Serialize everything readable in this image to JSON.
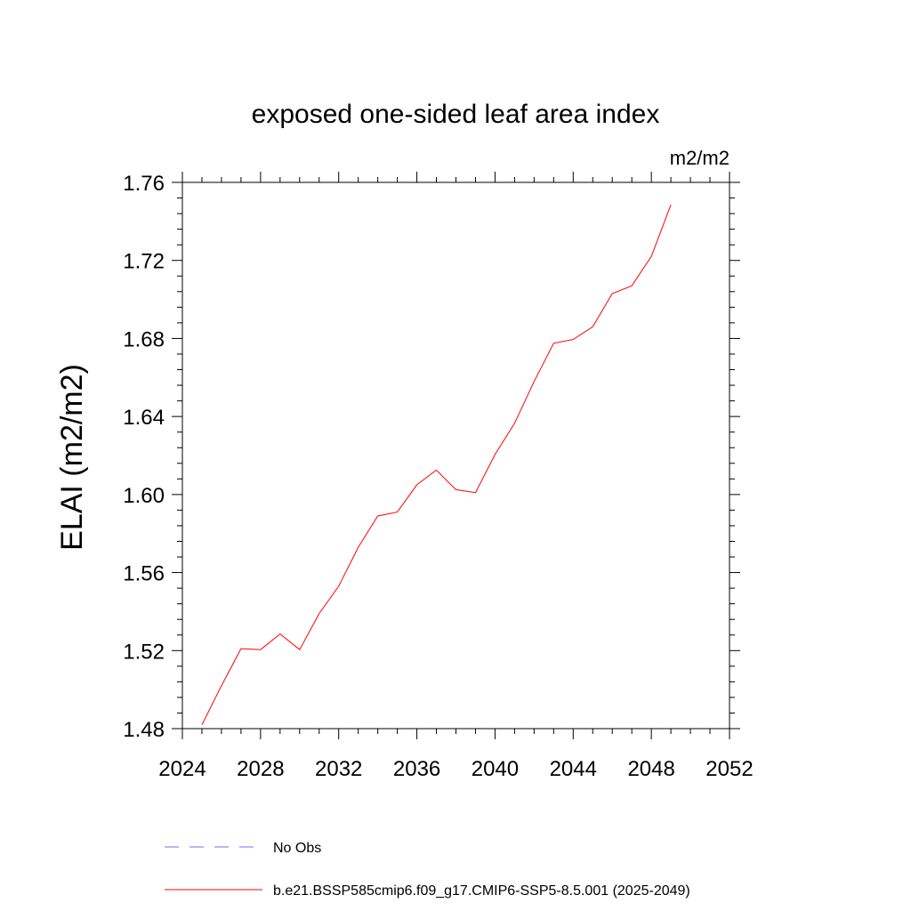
{
  "chart_data": {
    "type": "line",
    "title": "exposed one-sided leaf area index",
    "units_label": "m2/m2",
    "xlabel": "",
    "ylabel": "ELAI  (m2/m2)",
    "xlim": [
      2024,
      2052
    ],
    "ylim": [
      1.48,
      1.76
    ],
    "x_ticks": [
      2024,
      2028,
      2032,
      2036,
      2040,
      2044,
      2048,
      2052
    ],
    "y_ticks": [
      1.48,
      1.52,
      1.56,
      1.6,
      1.64,
      1.68,
      1.72,
      1.76
    ],
    "x_tick_labels": [
      "2024",
      "2028",
      "2032",
      "2036",
      "2040",
      "2044",
      "2048",
      "2052"
    ],
    "y_tick_labels": [
      "1.48",
      "1.52",
      "1.56",
      "1.60",
      "1.64",
      "1.68",
      "1.72",
      "1.76"
    ],
    "grid": false,
    "legend_position": "bottom",
    "series": [
      {
        "name": "b.e21.BSSP585cmip6.f09_g17.CMIP6-SSP5-8.5.001 (2025-2049)",
        "color": "#ff0000",
        "dash": "solid",
        "x": [
          2025,
          2026,
          2027,
          2028,
          2029,
          2030,
          2031,
          2032,
          2033,
          2034,
          2035,
          2036,
          2037,
          2038,
          2039,
          2040,
          2041,
          2042,
          2043,
          2044,
          2045,
          2046,
          2047,
          2048,
          2049
        ],
        "values": [
          1.482,
          1.502,
          1.521,
          1.5205,
          1.5285,
          1.5205,
          1.539,
          1.553,
          1.573,
          1.589,
          1.591,
          1.605,
          1.6125,
          1.6025,
          1.601,
          1.6205,
          1.6365,
          1.658,
          1.6775,
          1.6795,
          1.686,
          1.703,
          1.707,
          1.722,
          1.7485
        ]
      }
    ],
    "legend": [
      {
        "label": "No Obs",
        "color": "#7b68ee",
        "dash": "dashed"
      },
      {
        "label": "b.e21.BSSP585cmip6.f09_g17.CMIP6-SSP5-8.5.001 (2025-2049)",
        "color": "#ff0000",
        "dash": "solid"
      }
    ]
  }
}
